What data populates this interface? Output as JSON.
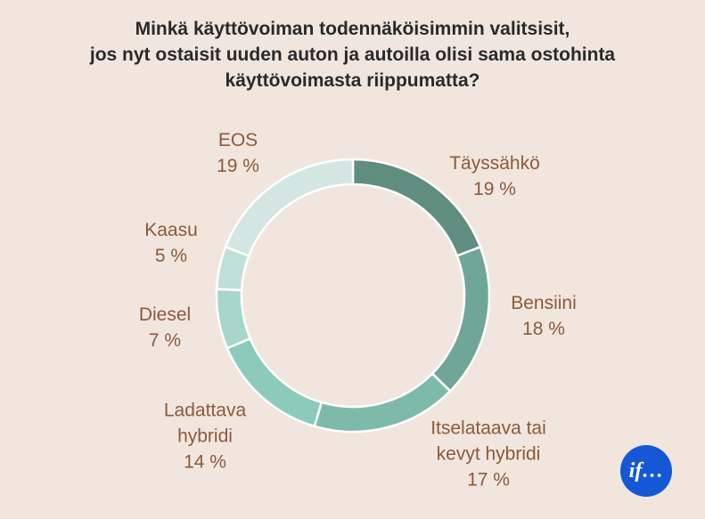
{
  "chart_data": {
    "type": "donut",
    "title": "Minkä käyttövoiman todennäköisimmin valitsisit,\njos nyt ostaisit uuden auton ja autoilla olisi sama ostohinta\nkäyttövoimasta riippumatta?",
    "categories": [
      "Täyssähkö",
      "Bensiini",
      "Itselataava tai\nkevyt hybridi",
      "Ladattava\nhybridi",
      "Diesel",
      "Kaasu",
      "EOS"
    ],
    "values": [
      19,
      18,
      17,
      14,
      7,
      5,
      19
    ],
    "value_labels": [
      "19 %",
      "18 %",
      "17 %",
      "14 %",
      "7 %",
      "5 %",
      "19 %"
    ],
    "colors": [
      "#5f8e81",
      "#6fa698",
      "#7ebaaa",
      "#8ccbbb",
      "#a7d6ca",
      "#bfe0d8",
      "#d3e6e2"
    ]
  },
  "logo": "if…"
}
